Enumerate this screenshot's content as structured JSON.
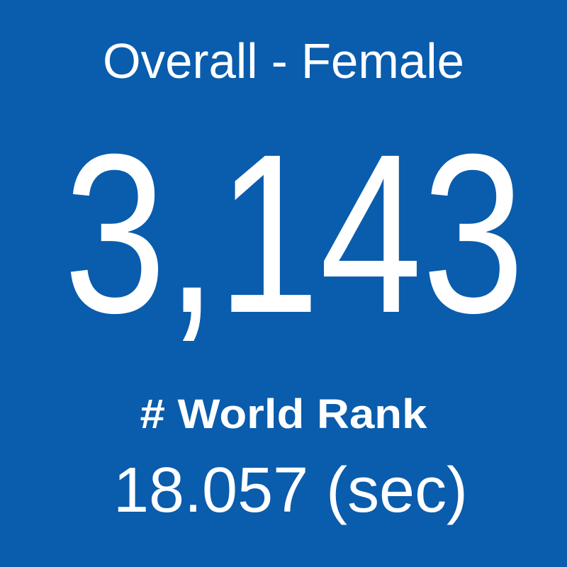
{
  "tile": {
    "title": "Overall - Female",
    "rank": "3,143",
    "label": "# World Rank",
    "time": "18.057 (sec)"
  }
}
